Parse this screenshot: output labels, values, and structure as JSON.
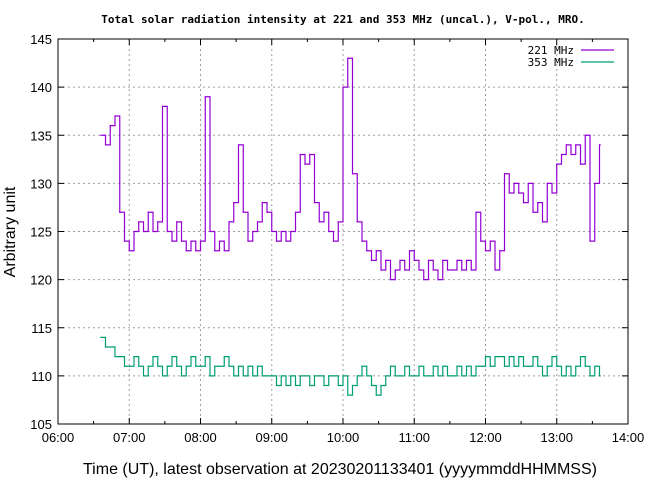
{
  "chart_data": {
    "type": "line",
    "title": "Total solar radiation intensity at 221 and 353 MHz (uncal.), V-pol., MRO.",
    "xlabel": "Time (UT), latest observation at 20230201133401  (yyyymmddHHMMSS)",
    "ylabel": "Arbitrary unit",
    "xlim": [
      "06:00",
      "14:00"
    ],
    "ylim": [
      105,
      145
    ],
    "xticks": [
      "06:00",
      "07:00",
      "08:00",
      "09:00",
      "10:00",
      "11:00",
      "12:00",
      "13:00",
      "14:00"
    ],
    "yticks": [
      "105",
      "110",
      "115",
      "120",
      "125",
      "130",
      "135",
      "140",
      "145"
    ],
    "grid": true,
    "legend_position": "top-right",
    "x_start": "06:36",
    "x_step_minutes": 4,
    "series": [
      {
        "name": "221 MHz",
        "color": "#9400d3",
        "values": [
          135,
          134,
          136,
          137,
          127,
          124,
          123,
          125,
          126,
          125,
          127,
          125,
          126,
          138,
          125,
          124,
          126,
          124,
          123,
          124,
          123,
          124,
          139,
          125,
          123,
          124,
          123,
          126,
          128,
          134,
          127,
          124,
          125,
          126,
          128,
          127,
          125,
          124,
          125,
          124,
          125,
          127,
          133,
          132,
          133,
          128,
          126,
          127,
          125,
          124,
          126,
          140,
          143,
          131,
          126,
          124,
          123,
          122,
          123,
          121,
          122,
          120,
          121,
          122,
          121,
          123,
          122,
          121,
          120,
          122,
          121,
          120,
          122,
          121,
          121,
          122,
          121,
          122,
          121,
          127,
          124,
          123,
          124,
          121,
          123,
          131,
          129,
          130,
          129,
          128,
          130,
          127,
          128,
          126,
          130,
          129,
          132,
          133,
          134,
          133,
          134,
          132,
          135,
          124,
          130,
          134
        ]
      },
      {
        "name": "353 MHz",
        "color": "#009e73",
        "values": [
          114,
          113,
          113,
          112,
          112,
          111,
          111,
          112,
          111,
          110,
          111,
          112,
          111,
          110,
          111,
          112,
          111,
          110,
          111,
          112,
          111,
          111,
          112,
          110,
          111,
          111,
          112,
          111,
          110,
          111,
          110,
          111,
          110,
          111,
          110,
          110,
          110,
          109,
          110,
          109,
          110,
          109,
          110,
          110,
          109,
          110,
          110,
          109,
          110,
          110,
          109,
          110,
          108,
          109,
          110,
          111,
          110,
          109,
          108,
          109,
          110,
          111,
          110,
          110,
          111,
          110,
          110,
          111,
          110,
          110,
          111,
          110,
          111,
          110,
          110,
          111,
          110,
          111,
          110,
          111,
          111,
          112,
          111,
          112,
          112,
          111,
          112,
          111,
          112,
          111,
          111,
          112,
          111,
          110,
          111,
          112,
          111,
          110,
          111,
          110,
          111,
          112,
          111,
          110,
          111,
          110
        ]
      }
    ]
  }
}
